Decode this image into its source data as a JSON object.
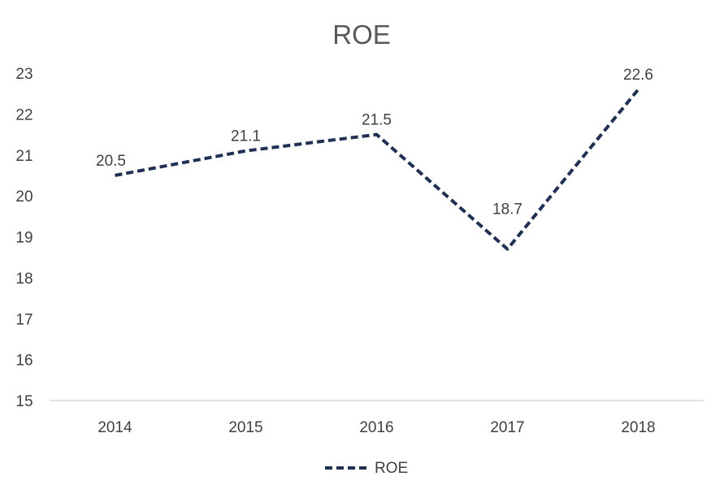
{
  "chart_data": {
    "type": "line",
    "title": "ROE",
    "categories": [
      "2014",
      "2015",
      "2016",
      "2017",
      "2018"
    ],
    "series": [
      {
        "name": "ROE",
        "values": [
          20.5,
          21.1,
          21.5,
          18.7,
          22.6
        ]
      }
    ],
    "y_ticks": [
      "15",
      "16",
      "17",
      "18",
      "19",
      "20",
      "21",
      "22",
      "23"
    ],
    "ylim": [
      15,
      23
    ],
    "xlabel": "",
    "ylabel": "",
    "grid": false,
    "legend_position": "bottom",
    "line_style": "dashed",
    "series_color": "#1f3057",
    "axis_color": "#d9d9d9",
    "text_color": "#404040",
    "title_color": "#595959"
  }
}
